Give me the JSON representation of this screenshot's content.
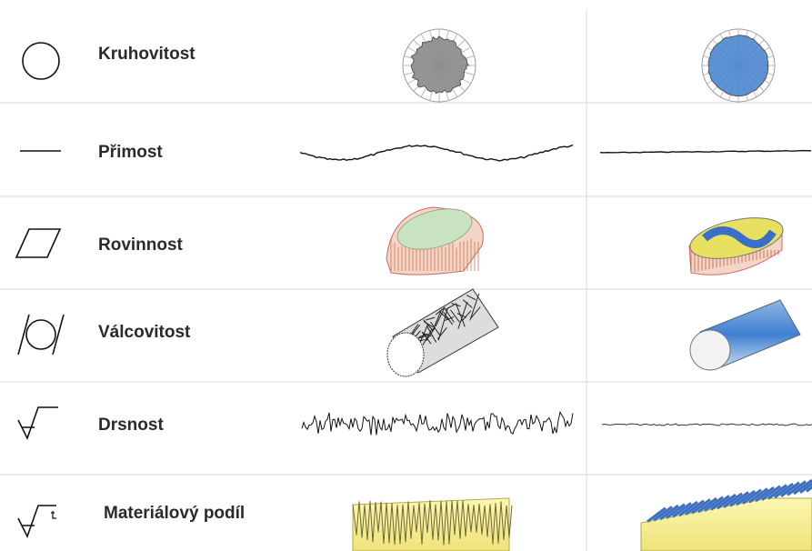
{
  "rows": [
    {
      "label": "Kruhovitost"
    },
    {
      "label": "Přimost"
    },
    {
      "label": "Rovinnost"
    },
    {
      "label": "Válcovitost"
    },
    {
      "label": "Drsnost"
    },
    {
      "label": "Materiálový podíl"
    }
  ]
}
